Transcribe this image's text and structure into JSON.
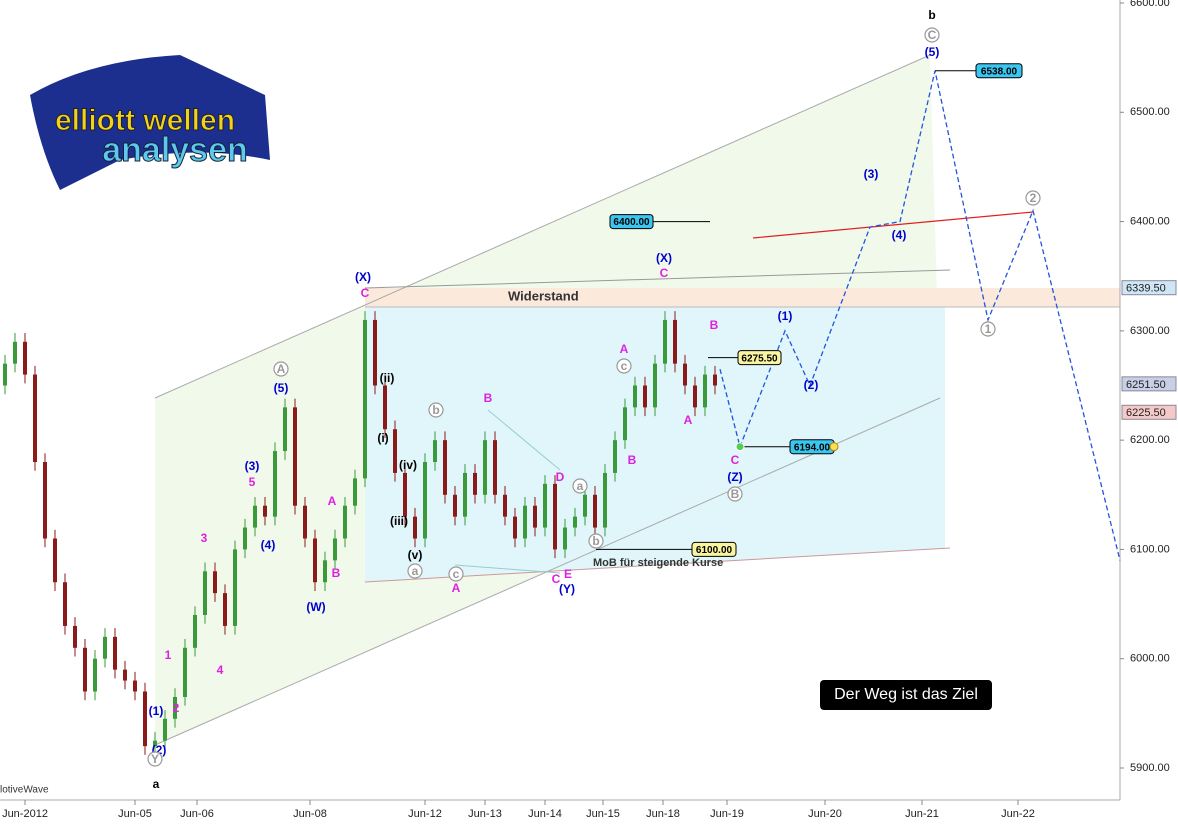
{
  "chart_data": {
    "type": "candlestick",
    "xlim": [
      0,
      112
    ],
    "ylim": [
      5900,
      6600
    ],
    "xticks": [
      {
        "value": 2.5,
        "label": "Jun-2012"
      },
      {
        "value": 13.5,
        "label": "Jun-05"
      },
      {
        "value": 19.7,
        "label": "Jun-06"
      },
      {
        "value": 31,
        "label": "Jun-08"
      },
      {
        "value": 42.5,
        "label": "Jun-12"
      },
      {
        "value": 48.5,
        "label": "Jun-13"
      },
      {
        "value": 54.5,
        "label": "Jun-14"
      },
      {
        "value": 60.3,
        "label": "Jun-15"
      },
      {
        "value": 66.3,
        "label": "Jun-18"
      },
      {
        "value": 72.7,
        "label": "Jun-19"
      },
      {
        "value": 82.5,
        "label": "Jun-20"
      },
      {
        "value": 92.2,
        "label": "Jun-21"
      },
      {
        "value": 101.8,
        "label": "Jun-22"
      }
    ],
    "yticks": [
      {
        "value": 5900,
        "label": "5900.00"
      },
      {
        "value": 6000,
        "label": "6000.00"
      },
      {
        "value": 6100,
        "label": "6100.00"
      },
      {
        "value": 6200,
        "label": "6200.00"
      },
      {
        "value": 6300,
        "label": "6300.00"
      },
      {
        "value": 6400,
        "label": "6400.00"
      },
      {
        "value": 6500,
        "label": "6500.00"
      },
      {
        "value": 6600,
        "label": "6600.00"
      }
    ],
    "up_color": "#3a9a3a",
    "down_color": "#8b1a1a",
    "x": [
      0.5,
      1.5,
      2.5,
      3.5,
      4.5,
      5.5,
      6.5,
      7.5,
      8.5,
      9.5,
      10.5,
      11.5,
      12.5,
      13.5,
      14.5,
      15.5,
      16.5,
      17.5,
      18.5,
      19.5,
      20.5,
      21.5,
      22.5,
      23.5,
      24.5,
      25.5,
      26.5,
      27.5,
      28.5,
      29.5,
      30.5,
      31.5,
      32.5,
      33.5,
      34.5,
      35.5,
      36.5,
      37.5,
      38.5,
      39.5,
      40.5,
      41.5,
      42.5,
      43.5,
      44.5,
      45.5,
      46.5,
      47.5,
      48.5,
      49.5,
      50.5,
      51.5,
      52.5,
      53.5,
      54.5,
      55.5,
      56.5,
      57.5,
      58.5,
      59.5,
      60.5,
      61.5,
      62.5,
      63.5,
      64.5,
      65.5,
      66.5,
      67.5,
      68.5,
      69.5,
      70.5,
      71.5
    ],
    "open": [
      6250,
      6270,
      6290,
      6260,
      6180,
      6110,
      6070,
      6030,
      6010,
      5970,
      6000,
      6020,
      5990,
      5980,
      5970,
      5920,
      5925,
      5945,
      5965,
      6010,
      6040,
      6080,
      6060,
      6030,
      6100,
      6120,
      6140,
      6130,
      6190,
      6230,
      6140,
      6110,
      6070,
      6090,
      6110,
      6140,
      6165,
      6310,
      6250,
      6210,
      6170,
      6130,
      6110,
      6180,
      6200,
      6150,
      6130,
      6170,
      6150,
      6200,
      6150,
      6130,
      6110,
      6140,
      6120,
      6160,
      6100,
      6120,
      6130,
      6150,
      6120,
      6170,
      6200,
      6230,
      6250,
      6230,
      6270,
      6310,
      6270,
      6250,
      6230,
      6260
    ],
    "high": [
      6278,
      6298,
      6298,
      6268,
      6188,
      6118,
      6078,
      6038,
      6018,
      6008,
      6028,
      6028,
      5998,
      5988,
      5978,
      5933,
      5953,
      5973,
      6018,
      6048,
      6088,
      6088,
      6068,
      6108,
      6128,
      6148,
      6148,
      6198,
      6238,
      6238,
      6148,
      6118,
      6098,
      6118,
      6148,
      6173,
      6318,
      6318,
      6258,
      6218,
      6178,
      6138,
      6188,
      6208,
      6208,
      6158,
      6178,
      6178,
      6208,
      6208,
      6158,
      6138,
      6148,
      6148,
      6168,
      6168,
      6128,
      6138,
      6158,
      6158,
      6178,
      6208,
      6238,
      6258,
      6258,
      6278,
      6318,
      6318,
      6278,
      6258,
      6268,
      6268
    ],
    "low": [
      6242,
      6262,
      6252,
      6172,
      6102,
      6062,
      6022,
      6002,
      5962,
      5962,
      5992,
      5982,
      5972,
      5962,
      5912,
      5912,
      5917,
      5937,
      5957,
      6002,
      6032,
      6052,
      6022,
      6022,
      6092,
      6112,
      6122,
      6122,
      6182,
      6132,
      6102,
      6062,
      6062,
      6082,
      6102,
      6132,
      6157,
      6242,
      6202,
      6162,
      6122,
      6102,
      6102,
      6172,
      6142,
      6122,
      6122,
      6142,
      6142,
      6142,
      6122,
      6102,
      6102,
      6112,
      6112,
      6092,
      6092,
      6112,
      6122,
      6112,
      6112,
      6162,
      6192,
      6222,
      6222,
      6222,
      6262,
      6262,
      6242,
      6222,
      6222,
      6242
    ],
    "close": [
      6270,
      6290,
      6260,
      6180,
      6110,
      6070,
      6030,
      6010,
      5970,
      6000,
      6020,
      5990,
      5980,
      5970,
      5920,
      5925,
      5945,
      5965,
      6010,
      6040,
      6080,
      6060,
      6030,
      6100,
      6120,
      6140,
      6130,
      6190,
      6230,
      6140,
      6110,
      6070,
      6090,
      6110,
      6140,
      6165,
      6310,
      6250,
      6210,
      6170,
      6130,
      6110,
      6180,
      6200,
      6150,
      6130,
      6170,
      6150,
      6200,
      6150,
      6130,
      6110,
      6140,
      6120,
      6160,
      6100,
      6120,
      6130,
      6150,
      6120,
      6170,
      6200,
      6230,
      6250,
      6230,
      6270,
      6310,
      6270,
      6250,
      6230,
      6260,
      6250
    ],
    "projection": {
      "color": "#2255dd",
      "x": [
        72,
        74,
        78.5,
        81,
        87,
        90,
        93.5,
        98.8,
        103.3,
        112
      ],
      "values": [
        6265,
        6194,
        6300,
        6250,
        6395,
        6400,
        6538,
        6310,
        6410,
        6090
      ]
    },
    "price_markers": [
      {
        "value": 6538,
        "label": "6538.00"
      },
      {
        "value": 6400,
        "label": "6400.00"
      },
      {
        "value": 6275.5,
        "label": "6275.50"
      },
      {
        "value": 6194,
        "label": "6194.00"
      },
      {
        "value": 6100,
        "label": "6100.00"
      }
    ],
    "axis_tags": [
      {
        "value": 6339.5,
        "label": "6339.50"
      },
      {
        "value": 6251.5,
        "label": "6251.50"
      },
      {
        "value": 6225.5,
        "label": "6225.50"
      }
    ],
    "wave_labels": [
      "(X)",
      "C",
      "(5)",
      "A",
      "(3)",
      "5",
      "(4)",
      "3",
      "1",
      "2",
      "4",
      "(1)",
      "(2)",
      "Y",
      "a",
      "A",
      "B",
      "(W)",
      "(ii)",
      "(i)",
      "(iv)",
      "(iii)",
      "(v)",
      "a",
      "b",
      "B",
      "c",
      "A",
      "D",
      "a",
      "C",
      "E",
      "(Y)",
      "b",
      "A",
      "c",
      "B",
      "(X)",
      "C",
      "B",
      "A",
      "C",
      "(Z)",
      "B",
      "(1)",
      "(2)",
      "(3)",
      "(4)",
      "(5)",
      "C",
      "b",
      "1",
      "2"
    ],
    "resistance_label": "Widerstand",
    "support_label": "MoB für steigende Kurse",
    "motto": "Der Weg ist das Ziel",
    "watermark": "lotiveWave",
    "logo": [
      "elliott wellen",
      "analysen"
    ]
  }
}
